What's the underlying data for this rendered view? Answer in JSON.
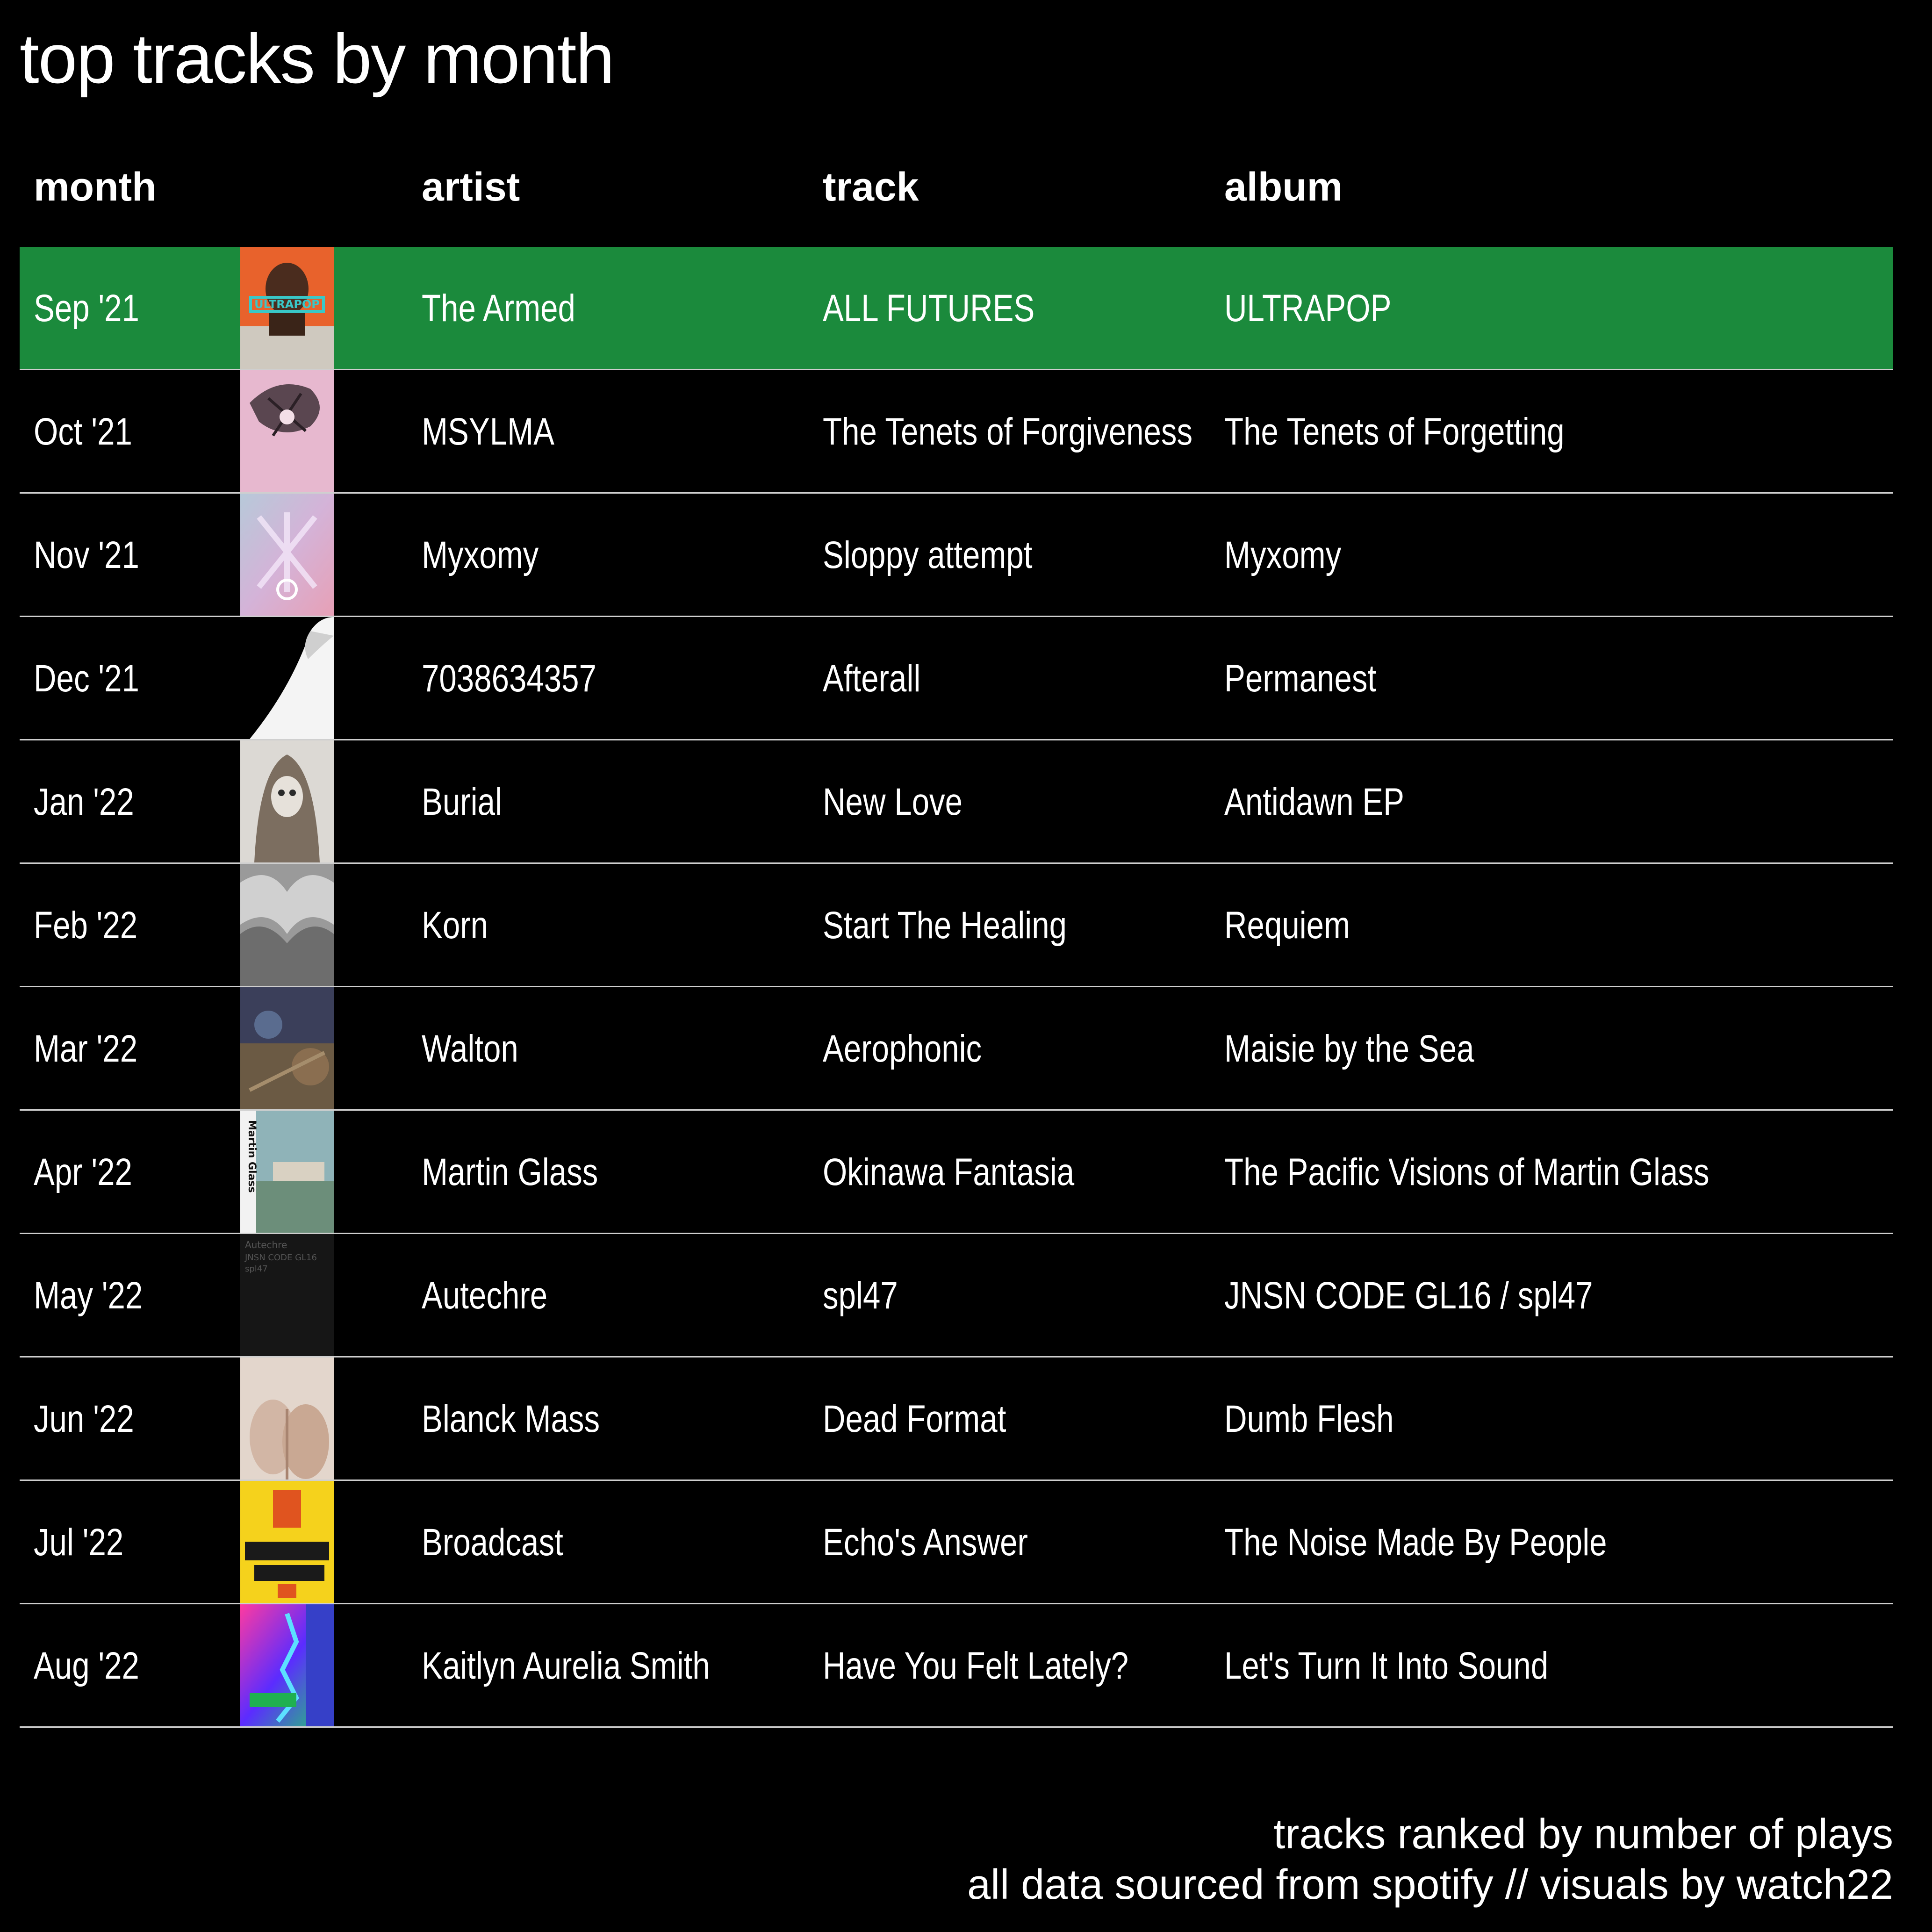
{
  "title": "top tracks by month",
  "columns": {
    "month": "month",
    "artist": "artist",
    "track": "track",
    "album": "album"
  },
  "colors": {
    "background": "#000000",
    "highlight": "#1b8a3c",
    "text": "#ffffff",
    "divider": "#cfcfcf"
  },
  "chart_data": {
    "type": "table",
    "columns": [
      "month",
      "artist",
      "track",
      "album"
    ],
    "rows": [
      {
        "month": "Sep '21",
        "artist": "The Armed",
        "track": "ALL FUTURES",
        "album": "ULTRAPOP",
        "cover_icon": "album-cover-ultrapop",
        "highlighted": true
      },
      {
        "month": "Oct '21",
        "artist": "MSYLMA",
        "track": "The Tenets of Forgiveness",
        "album": "The Tenets of Forgetting",
        "cover_icon": "album-cover-tenets",
        "highlighted": false
      },
      {
        "month": "Nov '21",
        "artist": "Myxomy",
        "track": "Sloppy attempt",
        "album": "Myxomy",
        "cover_icon": "album-cover-myxomy",
        "highlighted": false
      },
      {
        "month": "Dec '21",
        "artist": "7038634357",
        "track": "Afterall",
        "album": "Permanest",
        "cover_icon": "album-cover-permanest",
        "highlighted": false
      },
      {
        "month": "Jan '22",
        "artist": "Burial",
        "track": "New Love",
        "album": "Antidawn EP",
        "cover_icon": "album-cover-antidawn",
        "highlighted": false
      },
      {
        "month": "Feb '22",
        "artist": "Korn",
        "track": "Start The Healing",
        "album": "Requiem",
        "cover_icon": "album-cover-requiem",
        "highlighted": false
      },
      {
        "month": "Mar '22",
        "artist": "Walton",
        "track": "Aerophonic",
        "album": "Maisie by the Sea",
        "cover_icon": "album-cover-maisie",
        "highlighted": false
      },
      {
        "month": "Apr '22",
        "artist": "Martin Glass",
        "track": "Okinawa Fantasia",
        "album": "The Pacific Visions of Martin Glass",
        "cover_icon": "album-cover-pacific-visions",
        "highlighted": false
      },
      {
        "month": "May '22",
        "artist": "Autechre",
        "track": "spl47",
        "album": "JNSN CODE GL16 / spl47",
        "cover_icon": "album-cover-autechre",
        "highlighted": false
      },
      {
        "month": "Jun '22",
        "artist": "Blanck Mass",
        "track": "Dead Format",
        "album": "Dumb Flesh",
        "cover_icon": "album-cover-dumb-flesh",
        "highlighted": false
      },
      {
        "month": "Jul '22",
        "artist": "Broadcast",
        "track": "Echo's Answer",
        "album": "The Noise Made By People",
        "cover_icon": "album-cover-broadcast",
        "highlighted": false
      },
      {
        "month": "Aug '22",
        "artist": "Kaitlyn Aurelia Smith",
        "track": "Have You Felt Lately?",
        "album": "Let's Turn It Into Sound",
        "cover_icon": "album-cover-lets-turn-it-into-sound",
        "highlighted": false
      }
    ]
  },
  "footer": {
    "line1": "tracks ranked by number of plays",
    "line2": "all data sourced from spotify // visuals by watch22"
  }
}
